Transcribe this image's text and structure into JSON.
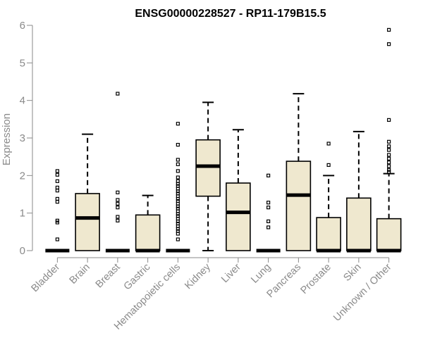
{
  "chart_data": {
    "type": "box",
    "title": "ENSG00000228527 - RP11-179B15.5",
    "xlabel": "",
    "ylabel": "Expression",
    "ylim": [
      0,
      6
    ],
    "yticks": [
      0,
      1,
      2,
      3,
      4,
      5,
      6
    ],
    "grid": false,
    "colors": {
      "box_fill": "#efe8cf",
      "stroke": "#000000",
      "axis": "#8a8a8a"
    },
    "categories": [
      "Bladder",
      "Brain",
      "Breast",
      "Gastric",
      "Hematopoietic cells",
      "Kidney",
      "Liver",
      "Lung",
      "Pancreas",
      "Prostate",
      "Skin",
      "Unknown / Other"
    ],
    "boxes": [
      {
        "category": "Bladder",
        "min": 0,
        "q1": 0,
        "median": 0,
        "q3": 0,
        "max": 0,
        "outliers": [
          2.12,
          2.02,
          1.85,
          1.68,
          1.6,
          1.38,
          1.3,
          0.8,
          0.75,
          0.3
        ]
      },
      {
        "category": "Brain",
        "min": 0,
        "q1": 0,
        "median": 0.87,
        "q3": 1.52,
        "max": 3.1,
        "outliers": []
      },
      {
        "category": "Breast",
        "min": 0,
        "q1": 0,
        "median": 0,
        "q3": 0,
        "max": 0,
        "outliers": [
          4.18,
          1.55,
          1.35,
          1.25,
          1.15,
          0.9,
          0.8
        ]
      },
      {
        "category": "Gastric",
        "min": 0,
        "q1": 0,
        "median": 0,
        "q3": 0.95,
        "max": 1.47,
        "outliers": []
      },
      {
        "category": "Hematopoietic cells",
        "min": 0,
        "q1": 0,
        "median": 0,
        "q3": 0,
        "max": 0,
        "outliers": [
          3.38,
          2.82,
          2.42,
          2.3,
          2.12,
          1.95,
          1.85,
          1.78,
          1.72,
          1.65,
          1.58,
          1.52,
          1.45,
          1.38,
          1.32,
          1.25,
          1.18,
          1.12,
          1.05,
          0.98,
          0.92,
          0.85,
          0.78,
          0.72,
          0.65,
          0.58,
          0.52,
          0.45,
          0.3
        ]
      },
      {
        "category": "Kidney",
        "min": 0,
        "q1": 1.45,
        "median": 2.25,
        "q3": 2.95,
        "max": 3.95,
        "outliers": []
      },
      {
        "category": "Liver",
        "min": 0,
        "q1": 0,
        "median": 1.02,
        "q3": 1.8,
        "max": 3.22,
        "outliers": []
      },
      {
        "category": "Lung",
        "min": 0,
        "q1": 0,
        "median": 0,
        "q3": 0,
        "max": 0,
        "outliers": [
          2.0,
          1.28,
          1.15,
          0.78,
          0.62
        ]
      },
      {
        "category": "Pancreas",
        "min": 0,
        "q1": 0,
        "median": 1.48,
        "q3": 2.38,
        "max": 4.18,
        "outliers": []
      },
      {
        "category": "Prostate",
        "min": 0,
        "q1": 0,
        "median": 0,
        "q3": 0.88,
        "max": 2.0,
        "outliers": [
          2.85,
          2.28
        ]
      },
      {
        "category": "Skin",
        "min": 0,
        "q1": 0,
        "median": 0,
        "q3": 1.4,
        "max": 3.17,
        "outliers": []
      },
      {
        "category": "Unknown / Other",
        "min": 0,
        "q1": 0,
        "median": 0,
        "q3": 0.85,
        "max": 2.05,
        "outliers": [
          5.88,
          5.5,
          3.48,
          2.9,
          2.78,
          2.68,
          2.55,
          2.45,
          2.35,
          2.25,
          2.15,
          2.1
        ]
      }
    ]
  }
}
